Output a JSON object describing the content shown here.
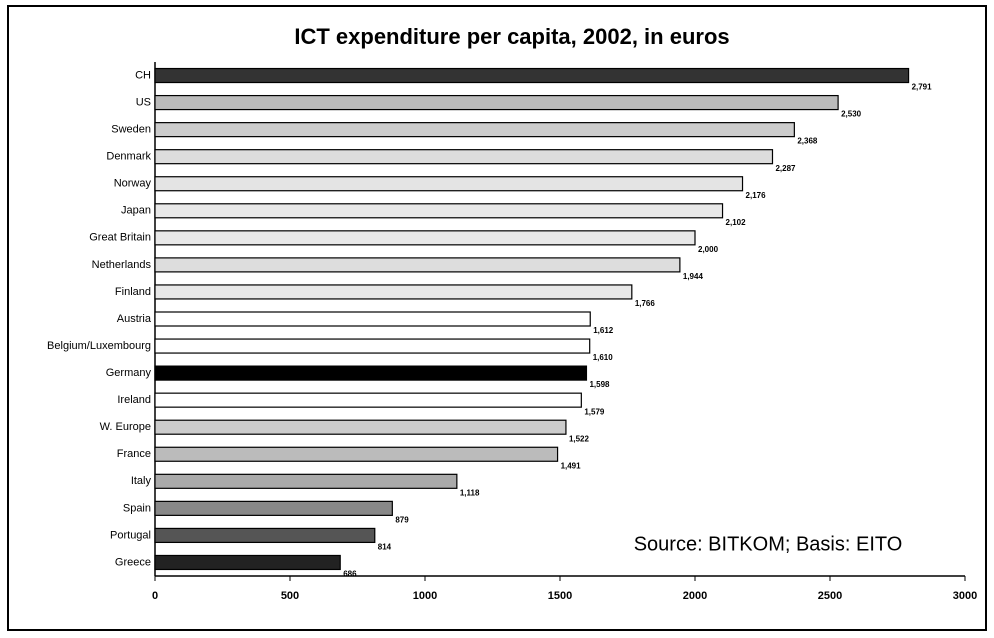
{
  "chart_data": {
    "type": "bar",
    "orientation": "horizontal",
    "title": "ICT expenditure per capita, 2002, in euros",
    "annotation": "Source: BITKOM; Basis: EITO",
    "categories": [
      "CH",
      "US",
      "Sweden",
      "Denmark",
      "Norway",
      "Japan",
      "Great Britain",
      "Netherlands",
      "Finland",
      "Austria",
      "Belgium/Luxembourg",
      "Germany",
      "Ireland",
      "W. Europe",
      "France",
      "Italy",
      "Spain",
      "Portugal",
      "Greece"
    ],
    "values": [
      2791,
      2530,
      2368,
      2287,
      2176,
      2102,
      2000,
      1944,
      1766,
      1612,
      1610,
      1598,
      1579,
      1522,
      1491,
      1118,
      879,
      814,
      686
    ],
    "value_labels": [
      "2,791",
      "2,530",
      "2,368",
      "2,287",
      "2,176",
      "2,102",
      "2,000",
      "1,944",
      "1,766",
      "1,612",
      "1,610",
      "1,598",
      "1,579",
      "1,522",
      "1,491",
      "1,118",
      "879",
      "814",
      "686"
    ],
    "colors": [
      "#333333",
      "#bbbbbb",
      "#cccccc",
      "#dddddd",
      "#e4e4e4",
      "#e8e8e8",
      "#e8e8e8",
      "#dddddd",
      "#e8e8e8",
      "#ffffff",
      "#ffffff",
      "#000000",
      "#ffffff",
      "#cccccc",
      "#bbbbbb",
      "#aaaaaa",
      "#888888",
      "#555555",
      "#222222"
    ],
    "xlim": [
      0,
      3000
    ],
    "xticks": [
      0,
      500,
      1000,
      1500,
      2000,
      2500,
      3000
    ]
  }
}
